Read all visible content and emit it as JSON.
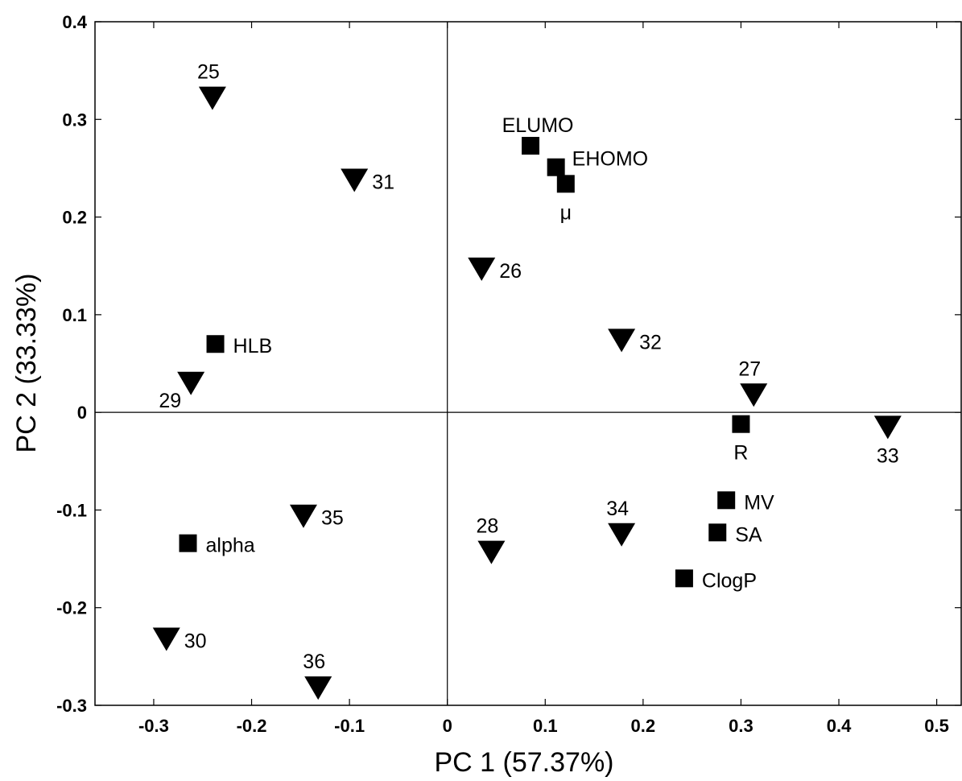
{
  "chart_data": {
    "type": "scatter",
    "title": "",
    "xlabel": "PC 1 (57.37%)",
    "ylabel": "PC 2 (33.33%)",
    "xlim": [
      -0.36,
      0.525
    ],
    "ylim": [
      -0.3,
      0.4
    ],
    "xticks": [
      "-0.3",
      "-0.2",
      "-0.1",
      "0",
      "0.1",
      "0.2",
      "0.3",
      "0.4",
      "0.5"
    ],
    "yticks": [
      "-0.3",
      "-0.2",
      "-0.1",
      "0",
      "0.1",
      "0.2",
      "0.3",
      "0.4"
    ],
    "grid": false,
    "reference_lines": {
      "x0": true,
      "y0": true
    },
    "series": [
      {
        "marker": "triangle-down",
        "color": "#000000",
        "points": [
          {
            "label": "25",
            "x": -0.24,
            "y": 0.322,
            "label_pos": "above"
          },
          {
            "label": "31",
            "x": -0.095,
            "y": 0.238,
            "label_pos": "right"
          },
          {
            "label": "26",
            "x": 0.035,
            "y": 0.147,
            "label_pos": "right"
          },
          {
            "label": "32",
            "x": 0.178,
            "y": 0.074,
            "label_pos": "right"
          },
          {
            "label": "29",
            "x": -0.262,
            "y": 0.03,
            "label_pos": "below-left"
          },
          {
            "label": "27",
            "x": 0.313,
            "y": 0.018,
            "label_pos": "above"
          },
          {
            "label": "33",
            "x": 0.45,
            "y": -0.015,
            "label_pos": "below"
          },
          {
            "label": "35",
            "x": -0.147,
            "y": -0.106,
            "label_pos": "right"
          },
          {
            "label": "34",
            "x": 0.178,
            "y": -0.125,
            "label_pos": "above"
          },
          {
            "label": "28",
            "x": 0.045,
            "y": -0.143,
            "label_pos": "above"
          },
          {
            "label": "30",
            "x": -0.287,
            "y": -0.232,
            "label_pos": "right"
          },
          {
            "label": "36",
            "x": -0.132,
            "y": -0.282,
            "label_pos": "above"
          }
        ]
      },
      {
        "marker": "square",
        "color": "#000000",
        "points": [
          {
            "label": "ELUMO",
            "x": 0.085,
            "y": 0.273,
            "label_pos": "above-left"
          },
          {
            "label": "EHOMO",
            "x": 0.111,
            "y": 0.251,
            "label_pos": "above-right"
          },
          {
            "label": "μ",
            "x": 0.121,
            "y": 0.234,
            "label_pos": "below"
          },
          {
            "label": "HLB",
            "x": -0.237,
            "y": 0.07,
            "label_pos": "right"
          },
          {
            "label": "R",
            "x": 0.3,
            "y": -0.012,
            "label_pos": "below"
          },
          {
            "label": "MV",
            "x": 0.285,
            "y": -0.09,
            "label_pos": "right"
          },
          {
            "label": "SA",
            "x": 0.276,
            "y": -0.123,
            "label_pos": "right"
          },
          {
            "label": "alpha",
            "x": -0.265,
            "y": -0.134,
            "label_pos": "right"
          },
          {
            "label": "ClogP",
            "x": 0.242,
            "y": -0.17,
            "label_pos": "right"
          }
        ]
      }
    ]
  }
}
